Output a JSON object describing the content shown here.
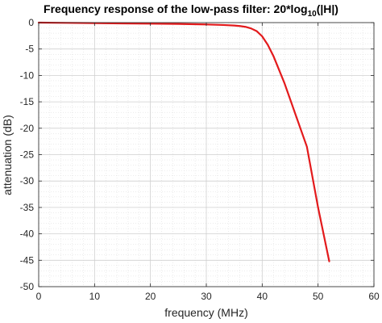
{
  "chart_data": {
    "type": "line",
    "title": "Frequency response of the low-pass filter: 20*log",
    "title_subscript": "10",
    "title_suffix": "(|H|)",
    "xlabel": "frequency (MHz)",
    "ylabel": "attenuation (dB)",
    "xlim": [
      0,
      60
    ],
    "ylim": [
      -50,
      0
    ],
    "xticks": [
      0,
      10,
      20,
      30,
      40,
      50,
      60
    ],
    "yticks": [
      0,
      -5,
      -10,
      -15,
      -20,
      -25,
      -30,
      -35,
      -40,
      -45,
      -50
    ],
    "grid": true,
    "minor_grid": true,
    "series": [
      {
        "color": "#e31a1c",
        "x": [
          0,
          5,
          10,
          15,
          20,
          25,
          30,
          33,
          35,
          36,
          37,
          38,
          39,
          40,
          41,
          42,
          44,
          46,
          48,
          50,
          52
        ],
        "y": [
          0,
          -0.05,
          -0.1,
          -0.15,
          -0.2,
          -0.25,
          -0.35,
          -0.45,
          -0.55,
          -0.65,
          -0.8,
          -1.1,
          -1.6,
          -2.6,
          -4.2,
          -6.3,
          -11.5,
          -17.5,
          -23.5,
          -35,
          -45.2
        ]
      }
    ]
  }
}
